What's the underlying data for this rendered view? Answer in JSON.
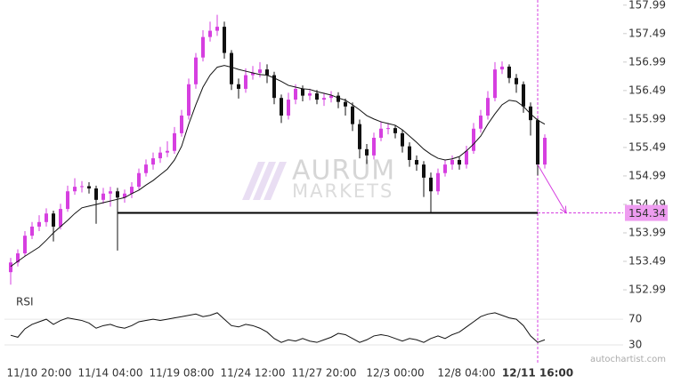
{
  "chart_data": {
    "type": "candlestick",
    "categories": [
      null,
      null,
      null,
      null,
      "11/10 20:00",
      null,
      null,
      null,
      null,
      null,
      null,
      null,
      null,
      null,
      "11/14 04:00",
      null,
      null,
      null,
      null,
      null,
      null,
      null,
      null,
      null,
      "11/19 08:00",
      null,
      null,
      null,
      null,
      null,
      null,
      null,
      null,
      null,
      "11/24 12:00",
      null,
      null,
      null,
      null,
      null,
      null,
      null,
      null,
      null,
      "11/27 20:00",
      null,
      null,
      null,
      null,
      null,
      null,
      null,
      null,
      null,
      "12/3 00:00",
      null,
      null,
      null,
      null,
      null,
      null,
      null,
      null,
      null,
      "12/8 04:00",
      null,
      null,
      null,
      null,
      null,
      null,
      null,
      null,
      null,
      "12/11 16:00",
      null
    ],
    "open": [
      153.3,
      153.47,
      153.63,
      153.94,
      154.1,
      154.18,
      154.33,
      154.1,
      154.41,
      154.72,
      154.8,
      154.81,
      154.77,
      154.57,
      154.68,
      154.72,
      154.61,
      154.68,
      154.8,
      155.04,
      155.19,
      155.3,
      155.4,
      155.43,
      155.74,
      156.05,
      156.6,
      157.07,
      157.43,
      157.54,
      157.61,
      157.15,
      156.6,
      156.52,
      156.76,
      156.8,
      156.86,
      156.76,
      156.36,
      156.05,
      156.33,
      156.52,
      156.4,
      156.44,
      156.33,
      156.36,
      156.4,
      156.29,
      156.21,
      155.9,
      155.46,
      155.35,
      155.66,
      155.82,
      155.83,
      155.74,
      155.51,
      155.27,
      155.19,
      154.96,
      154.72,
      155.04,
      155.19,
      155.27,
      155.19,
      155.43,
      155.82,
      156.05,
      156.36,
      156.86,
      156.91,
      156.71,
      156.6,
      156.21,
      155.97,
      155.19
    ],
    "high": [
      153.55,
      153.7,
      154.02,
      154.18,
      154.3,
      154.42,
      154.38,
      154.5,
      154.82,
      154.95,
      154.9,
      154.88,
      154.82,
      154.78,
      154.8,
      154.78,
      154.75,
      154.88,
      155.12,
      155.28,
      155.4,
      155.5,
      155.6,
      155.85,
      156.15,
      156.7,
      157.15,
      157.55,
      157.7,
      157.82,
      157.7,
      157.2,
      156.7,
      156.88,
      156.92,
      156.99,
      156.95,
      156.82,
      156.42,
      156.45,
      156.6,
      156.58,
      156.52,
      156.5,
      156.45,
      156.48,
      156.46,
      156.35,
      156.28,
      155.98,
      155.55,
      155.75,
      155.95,
      155.92,
      155.88,
      155.8,
      155.58,
      155.35,
      155.25,
      155.05,
      155.12,
      155.28,
      155.35,
      155.32,
      155.52,
      155.92,
      156.15,
      156.48,
      156.99,
      157.0,
      156.95,
      156.78,
      156.65,
      156.28,
      156.0,
      155.72
    ],
    "low": [
      153.08,
      153.4,
      153.58,
      153.88,
      154.02,
      154.1,
      153.84,
      154.05,
      154.36,
      154.66,
      154.7,
      154.68,
      154.15,
      154.5,
      154.45,
      153.68,
      154.52,
      154.6,
      154.75,
      154.98,
      155.1,
      155.22,
      155.32,
      155.38,
      155.68,
      155.98,
      156.52,
      157.0,
      157.35,
      157.45,
      157.05,
      156.5,
      156.35,
      156.45,
      156.68,
      156.72,
      156.62,
      156.25,
      155.92,
      155.98,
      156.25,
      156.3,
      156.32,
      156.25,
      156.22,
      156.28,
      156.18,
      156.05,
      155.78,
      155.3,
      155.2,
      155.28,
      155.6,
      155.72,
      155.65,
      155.4,
      155.15,
      155.08,
      154.62,
      154.34,
      154.66,
      154.98,
      155.1,
      155.1,
      155.12,
      155.38,
      155.75,
      155.98,
      156.3,
      156.78,
      156.62,
      156.45,
      156.1,
      155.7,
      155.0,
      155.12
    ],
    "close": [
      153.47,
      153.63,
      153.94,
      154.1,
      154.18,
      154.33,
      154.1,
      154.41,
      154.72,
      154.8,
      154.81,
      154.77,
      154.57,
      154.68,
      154.72,
      154.61,
      154.68,
      154.8,
      155.04,
      155.19,
      155.3,
      155.4,
      155.43,
      155.74,
      156.05,
      156.6,
      157.07,
      157.43,
      157.54,
      157.61,
      157.15,
      156.6,
      156.52,
      156.76,
      156.8,
      156.86,
      156.76,
      156.36,
      156.05,
      156.33,
      156.52,
      156.4,
      156.44,
      156.33,
      156.36,
      156.4,
      156.29,
      156.21,
      155.9,
      155.46,
      155.35,
      155.66,
      155.82,
      155.83,
      155.74,
      155.51,
      155.27,
      155.19,
      154.96,
      154.72,
      155.04,
      155.19,
      155.27,
      155.19,
      155.43,
      155.82,
      156.05,
      156.36,
      156.86,
      156.91,
      156.71,
      156.6,
      156.21,
      155.97,
      155.19,
      155.66
    ],
    "up_color": "#d63fe0",
    "down_color": "#111111",
    "ylim": [
      152.85,
      158.08
    ],
    "yticks": [
      157.99,
      157.49,
      156.99,
      156.49,
      155.99,
      155.49,
      154.99,
      154.49,
      153.99,
      153.49,
      152.99
    ],
    "moving_average": {
      "color": "#111111",
      "values": [
        153.4,
        153.49,
        153.58,
        153.66,
        153.74,
        153.86,
        153.99,
        154.1,
        154.21,
        154.33,
        154.43,
        154.46,
        154.49,
        154.52,
        154.55,
        154.58,
        154.61,
        154.68,
        154.74,
        154.83,
        154.91,
        155.01,
        155.11,
        155.27,
        155.51,
        155.9,
        156.24,
        156.55,
        156.76,
        156.9,
        156.93,
        156.9,
        156.86,
        156.83,
        156.8,
        156.77,
        156.76,
        156.71,
        156.65,
        156.58,
        156.55,
        156.52,
        156.51,
        156.47,
        156.44,
        156.41,
        156.36,
        156.32,
        156.24,
        156.15,
        156.05,
        155.99,
        155.94,
        155.91,
        155.88,
        155.8,
        155.69,
        155.58,
        155.46,
        155.37,
        155.3,
        155.27,
        155.29,
        155.33,
        155.43,
        155.55,
        155.69,
        155.9,
        156.08,
        156.24,
        156.32,
        156.3,
        156.21,
        156.08,
        155.97,
        155.9
      ]
    },
    "level": {
      "value": 154.34,
      "color": "#000000",
      "label_color": "#ee9cf0"
    },
    "forecast_color": "#d63fe0",
    "rsi": {
      "title": "RSI",
      "color": "#111111",
      "ylim": [
        20,
        95
      ],
      "yticks": [
        70,
        30
      ],
      "values": [
        45,
        42,
        55,
        62,
        66,
        70,
        62,
        68,
        72,
        70,
        68,
        64,
        56,
        60,
        62,
        58,
        56,
        60,
        66,
        68,
        70,
        68,
        70,
        72,
        74,
        76,
        78,
        74,
        76,
        80,
        70,
        60,
        58,
        62,
        60,
        56,
        50,
        40,
        34,
        38,
        36,
        40,
        36,
        34,
        38,
        42,
        48,
        46,
        40,
        34,
        38,
        44,
        46,
        44,
        40,
        36,
        40,
        38,
        34,
        40,
        44,
        40,
        46,
        50,
        58,
        66,
        74,
        78,
        80,
        76,
        72,
        70,
        60,
        44,
        34,
        38
      ]
    },
    "watermark": "AURUM",
    "watermark_sub": "MARKETS",
    "credit": "autochartist.com"
  }
}
